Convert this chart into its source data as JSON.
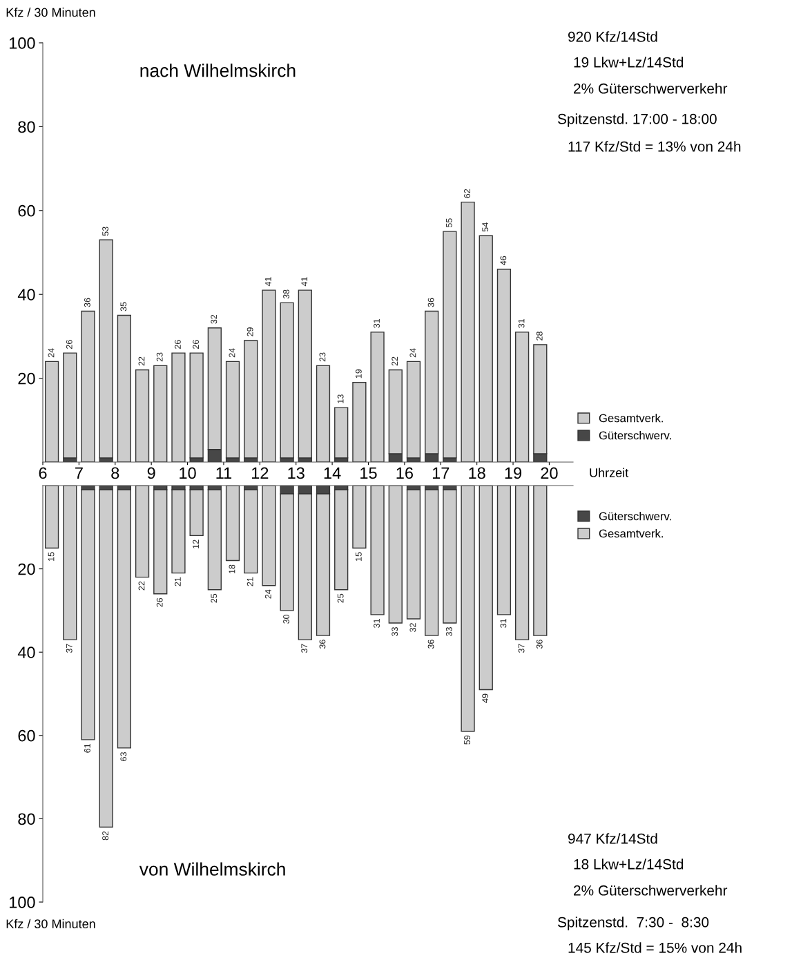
{
  "chart_data": [
    {
      "type": "bar",
      "stacked": true,
      "title": "nach Wilhelmskirch",
      "ylabel": "Kfz / 30 Minuten",
      "xlabel": "Uhrzeit",
      "x": [
        6.25,
        6.75,
        7.25,
        7.75,
        8.25,
        8.75,
        9.25,
        9.75,
        10.25,
        10.75,
        11.25,
        11.75,
        12.25,
        12.75,
        13.25,
        13.75,
        14.25,
        14.75,
        15.25,
        15.75,
        16.25,
        16.75,
        17.25,
        17.75,
        18.25,
        18.75,
        19.25,
        19.75
      ],
      "series": [
        {
          "name": "Güterschwerv.",
          "color": "#474747",
          "values": [
            0,
            1,
            0,
            1,
            0,
            0,
            0,
            0,
            1,
            3,
            1,
            1,
            0,
            1,
            1,
            0,
            1,
            0,
            0,
            2,
            1,
            2,
            1,
            0,
            0,
            0,
            0,
            2
          ]
        },
        {
          "name": "Gesamtverk.",
          "color": "#cccccc",
          "values": [
            24,
            25,
            36,
            52,
            35,
            22,
            23,
            26,
            25,
            29,
            23,
            28,
            41,
            37,
            40,
            23,
            12,
            19,
            31,
            20,
            23,
            34,
            54,
            62,
            54,
            46,
            31,
            26
          ]
        }
      ],
      "totals": [
        "24",
        "26",
        "36",
        "53",
        "35",
        "22",
        "23",
        "26",
        "26",
        "32",
        "24",
        "29",
        "41",
        "38",
        "41",
        "23",
        "13",
        "19",
        "31",
        "22",
        "24",
        "36",
        "55",
        "62",
        "54",
        "46",
        "31",
        "28"
      ],
      "xlim": [
        6,
        20.66
      ],
      "xticks": [
        6,
        7,
        8,
        9,
        10,
        11,
        12,
        13,
        14,
        15,
        16,
        17,
        18,
        19,
        20
      ],
      "ylim": [
        0,
        100
      ],
      "yticks": [
        20,
        40,
        60,
        80,
        100
      ],
      "grid": false,
      "legend": "right",
      "annotations": [
        "920 Kfz/14Std",
        "19 Lkw+Lz/14Std",
        "2% Güterschwerverkehr",
        "Spitzenstd. 17:00 - 18:00",
        "117 Kfz/Std = 13% von 24h"
      ]
    },
    {
      "type": "bar",
      "stacked": true,
      "title": "von Wilhelmskirch",
      "ylabel": "Kfz / 30 Minuten",
      "tick_labels": "y",
      "x": [
        6.25,
        6.75,
        7.25,
        7.75,
        8.25,
        8.75,
        9.25,
        9.75,
        10.25,
        10.75,
        11.25,
        11.75,
        12.25,
        12.75,
        13.25,
        13.75,
        14.25,
        14.75,
        15.25,
        15.75,
        16.25,
        16.75,
        17.25,
        17.75,
        18.25,
        18.75,
        19.25,
        19.75
      ],
      "series": [
        {
          "name": "Güterschwerv.",
          "color": "#474747",
          "values": [
            0,
            0,
            1,
            1,
            1,
            0,
            1,
            1,
            1,
            1,
            0,
            1,
            0,
            2,
            2,
            2,
            1,
            0,
            0,
            0,
            1,
            1,
            1,
            0,
            0,
            0,
            0,
            0
          ]
        },
        {
          "name": "Gesamtverk.",
          "color": "#cccccc",
          "values": [
            15,
            37,
            60,
            81,
            62,
            22,
            25,
            20,
            11,
            24,
            18,
            20,
            24,
            28,
            35,
            34,
            24,
            15,
            31,
            33,
            31,
            35,
            32,
            59,
            49,
            31,
            37,
            36
          ]
        }
      ],
      "totals": [
        "15",
        "37",
        "61",
        "82",
        "63",
        "22",
        "26",
        "21",
        "12",
        "25",
        "18",
        "21",
        "24",
        "30",
        "37",
        "36",
        "25",
        "15",
        "31",
        "33",
        "32",
        "36",
        "33",
        "59",
        "49",
        "31",
        "37",
        "36"
      ],
      "xlim": [
        6,
        20.66
      ],
      "xticks": [
        6,
        7,
        8,
        9,
        10,
        11,
        12,
        13,
        14,
        15,
        16,
        17,
        18,
        19,
        20
      ],
      "ylim": [
        100,
        0
      ],
      "yticks": [
        20,
        40,
        60,
        80,
        100
      ],
      "grid": false,
      "legend": "right",
      "annotations": [
        "947 Kfz/14Std",
        "18 Lkw+Lz/14Std",
        "2% Güterschwerverkehr",
        "Spitzenstd.  7:30 -  8:30",
        "145 Kfz/Std = 15% von 24h"
      ]
    }
  ]
}
